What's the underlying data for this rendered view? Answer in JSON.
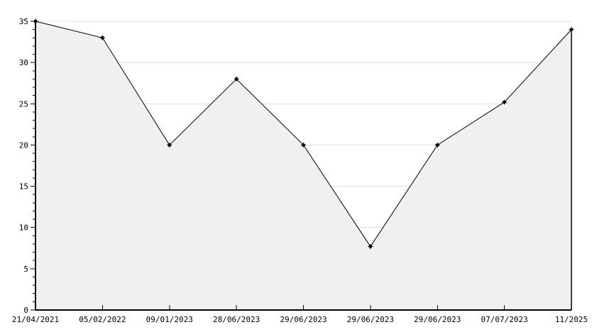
{
  "chart_data": {
    "type": "area",
    "title": "",
    "xlabel": "",
    "ylabel": "",
    "categories": [
      "21/04/2021",
      "05/02/2022",
      "09/01/2023",
      "28/06/2023",
      "29/06/2023",
      "29/06/2023",
      "29/06/2023",
      "07/07/2023",
      "11/2025"
    ],
    "values": [
      35,
      33,
      20,
      28,
      20,
      7.7,
      20,
      25.2,
      34
    ],
    "ylim": [
      0,
      35
    ],
    "y_major_ticks": [
      0,
      5,
      10,
      15,
      20,
      25,
      30,
      35
    ],
    "y_minor_tick_step": 1,
    "grid": "horizontal-major",
    "legend_position": "none",
    "marker": "star-dot"
  },
  "colors": {
    "background": "#ffffff",
    "area_fill": "#f0f0f0",
    "gridline": "#e0e0e0",
    "axis": "#000000",
    "line": "#000000",
    "marker": "#000000",
    "text": "#000000"
  }
}
